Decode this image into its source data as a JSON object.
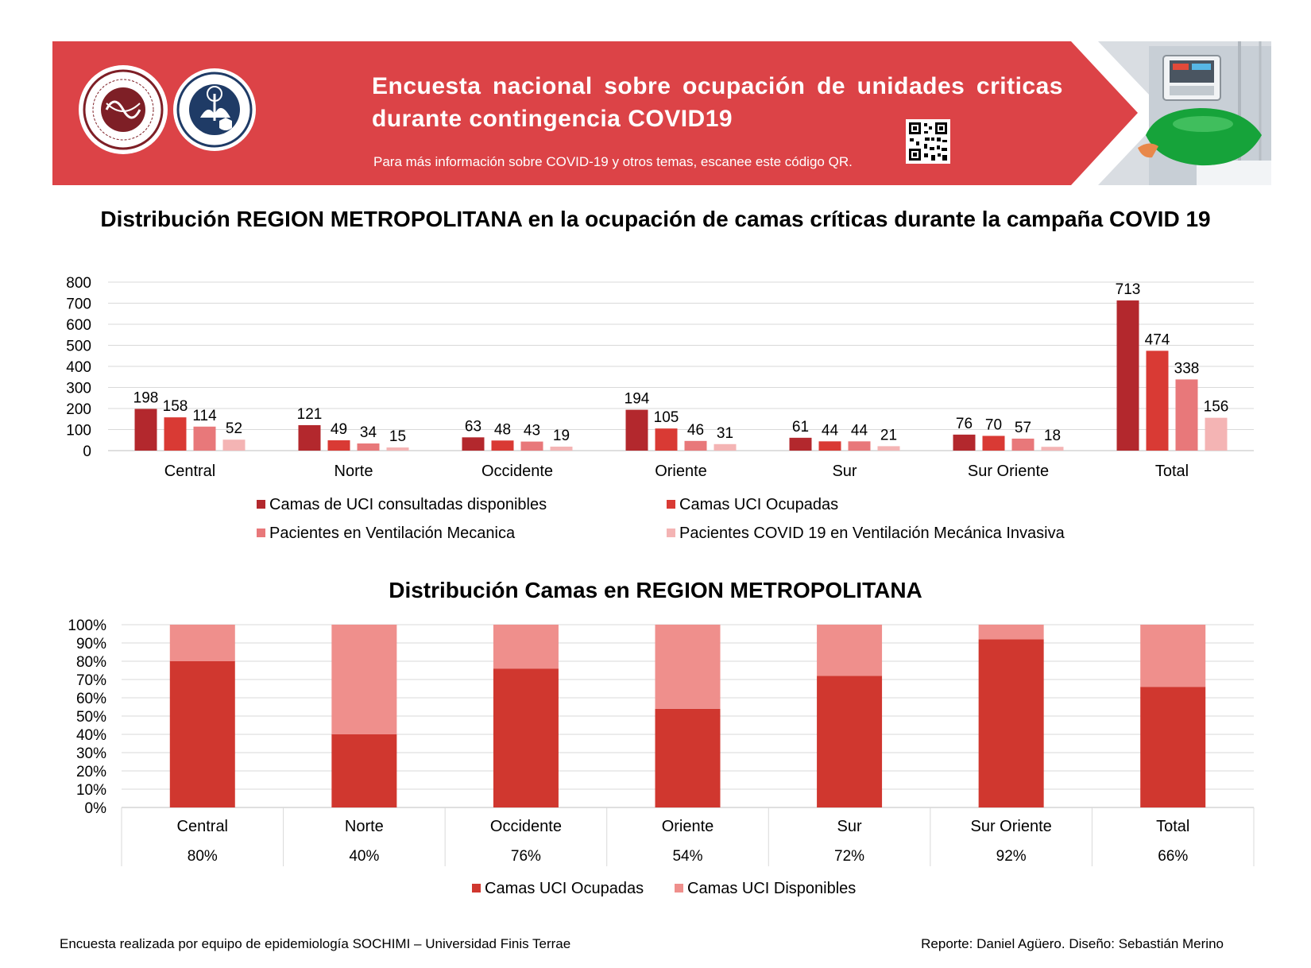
{
  "header": {
    "title": "Encuesta nacional sobre ocupación de unidades criticas durante contingencia COVID19",
    "subtitle": "Para más información sobre COVID-19 y otros temas, escanee este código QR.",
    "colors": {
      "banner": "#dc4347",
      "banner_light": "#ffffff"
    },
    "icons": [
      "sochimi-logo-icon",
      "universidad-finis-terrae-logo-icon",
      "qr-code-icon",
      "icu-photo-icon"
    ]
  },
  "chart_data": [
    {
      "type": "bar",
      "title": "Distribución REGION METROPOLITANA en la ocupación de camas críticas durante la campaña COVID 19",
      "categories": [
        "Central",
        "Norte",
        "Occidente",
        "Oriente",
        "Sur",
        "Sur Oriente",
        "Total"
      ],
      "ylim": [
        0,
        800
      ],
      "yticks": [
        "0",
        "100",
        "200",
        "300",
        "400",
        "500",
        "600",
        "700",
        "800"
      ],
      "grid": true,
      "legend_position": "bottom",
      "series": [
        {
          "name": "Camas de UCI consultadas disponibles",
          "color": "#b3282d",
          "values": [
            198,
            121,
            63,
            194,
            61,
            76,
            713
          ]
        },
        {
          "name": "Camas UCI Ocupadas",
          "color": "#d93a34",
          "values": [
            158,
            49,
            48,
            105,
            44,
            70,
            474
          ]
        },
        {
          "name": "Pacientes en Ventilación Mecanica",
          "color": "#e8787a",
          "values": [
            114,
            34,
            43,
            46,
            44,
            57,
            338
          ]
        },
        {
          "name": "Pacientes COVID 19 en Ventilación Mecánica Invasiva",
          "color": "#f4b4b4",
          "values": [
            52,
            15,
            19,
            31,
            21,
            18,
            156
          ]
        }
      ]
    },
    {
      "type": "bar",
      "stacked": "percent",
      "title": "Distribución Camas en REGION METROPOLITANA",
      "categories": [
        "Central",
        "Norte",
        "Occidente",
        "Oriente",
        "Sur",
        "Sur Oriente",
        "Total"
      ],
      "ylim": [
        0,
        100
      ],
      "yticks": [
        "0%",
        "10%",
        "20%",
        "30%",
        "40%",
        "50%",
        "60%",
        "70%",
        "80%",
        "90%",
        "100%"
      ],
      "grid": true,
      "legend_position": "bottom",
      "table_row": [
        "80%",
        "40%",
        "76%",
        "54%",
        "72%",
        "92%",
        "66%"
      ],
      "series": [
        {
          "name": "Camas UCI Ocupadas",
          "color": "#d0372f",
          "values": [
            80,
            40,
            76,
            54,
            72,
            92,
            66
          ]
        },
        {
          "name": "Camas UCI Disponibles",
          "color": "#ef8f8c",
          "values": [
            20,
            60,
            24,
            46,
            28,
            8,
            34
          ]
        }
      ]
    }
  ],
  "footer": {
    "left": "Encuesta realizada por equipo de epidemiología SOCHIMI – Universidad Finis Terrae",
    "right": "Reporte: Daniel Agüero. Diseño: Sebastián Merino"
  }
}
